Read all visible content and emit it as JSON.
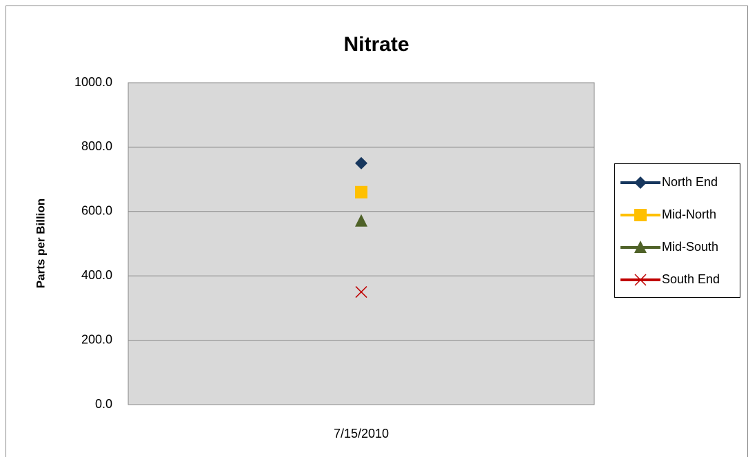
{
  "chart_data": {
    "type": "line",
    "title": "Nitrate",
    "y_label": "Parts per Billion",
    "categories": [
      "7/15/2010"
    ],
    "series": [
      {
        "name": "North End",
        "color": "#17375e",
        "marker": "diamond",
        "values": [
          750
        ]
      },
      {
        "name": "Mid-North",
        "color": "#ffc000",
        "marker": "square",
        "values": [
          660
        ]
      },
      {
        "name": "Mid-South",
        "color": "#4f6228",
        "marker": "triangle",
        "values": [
          570
        ]
      },
      {
        "name": "South End",
        "color": "#c00000",
        "marker": "x",
        "values": [
          350
        ]
      }
    ],
    "ylim": [
      0,
      1000
    ],
    "yticks": [
      {
        "value": 0,
        "label": "0.0"
      },
      {
        "value": 200,
        "label": "200.0"
      },
      {
        "value": 400,
        "label": "400.0"
      },
      {
        "value": 600,
        "label": "600.0"
      },
      {
        "value": 800,
        "label": "800.0"
      },
      {
        "value": 1000,
        "label": "1000.0"
      }
    ],
    "grid": true,
    "legend": "right"
  }
}
